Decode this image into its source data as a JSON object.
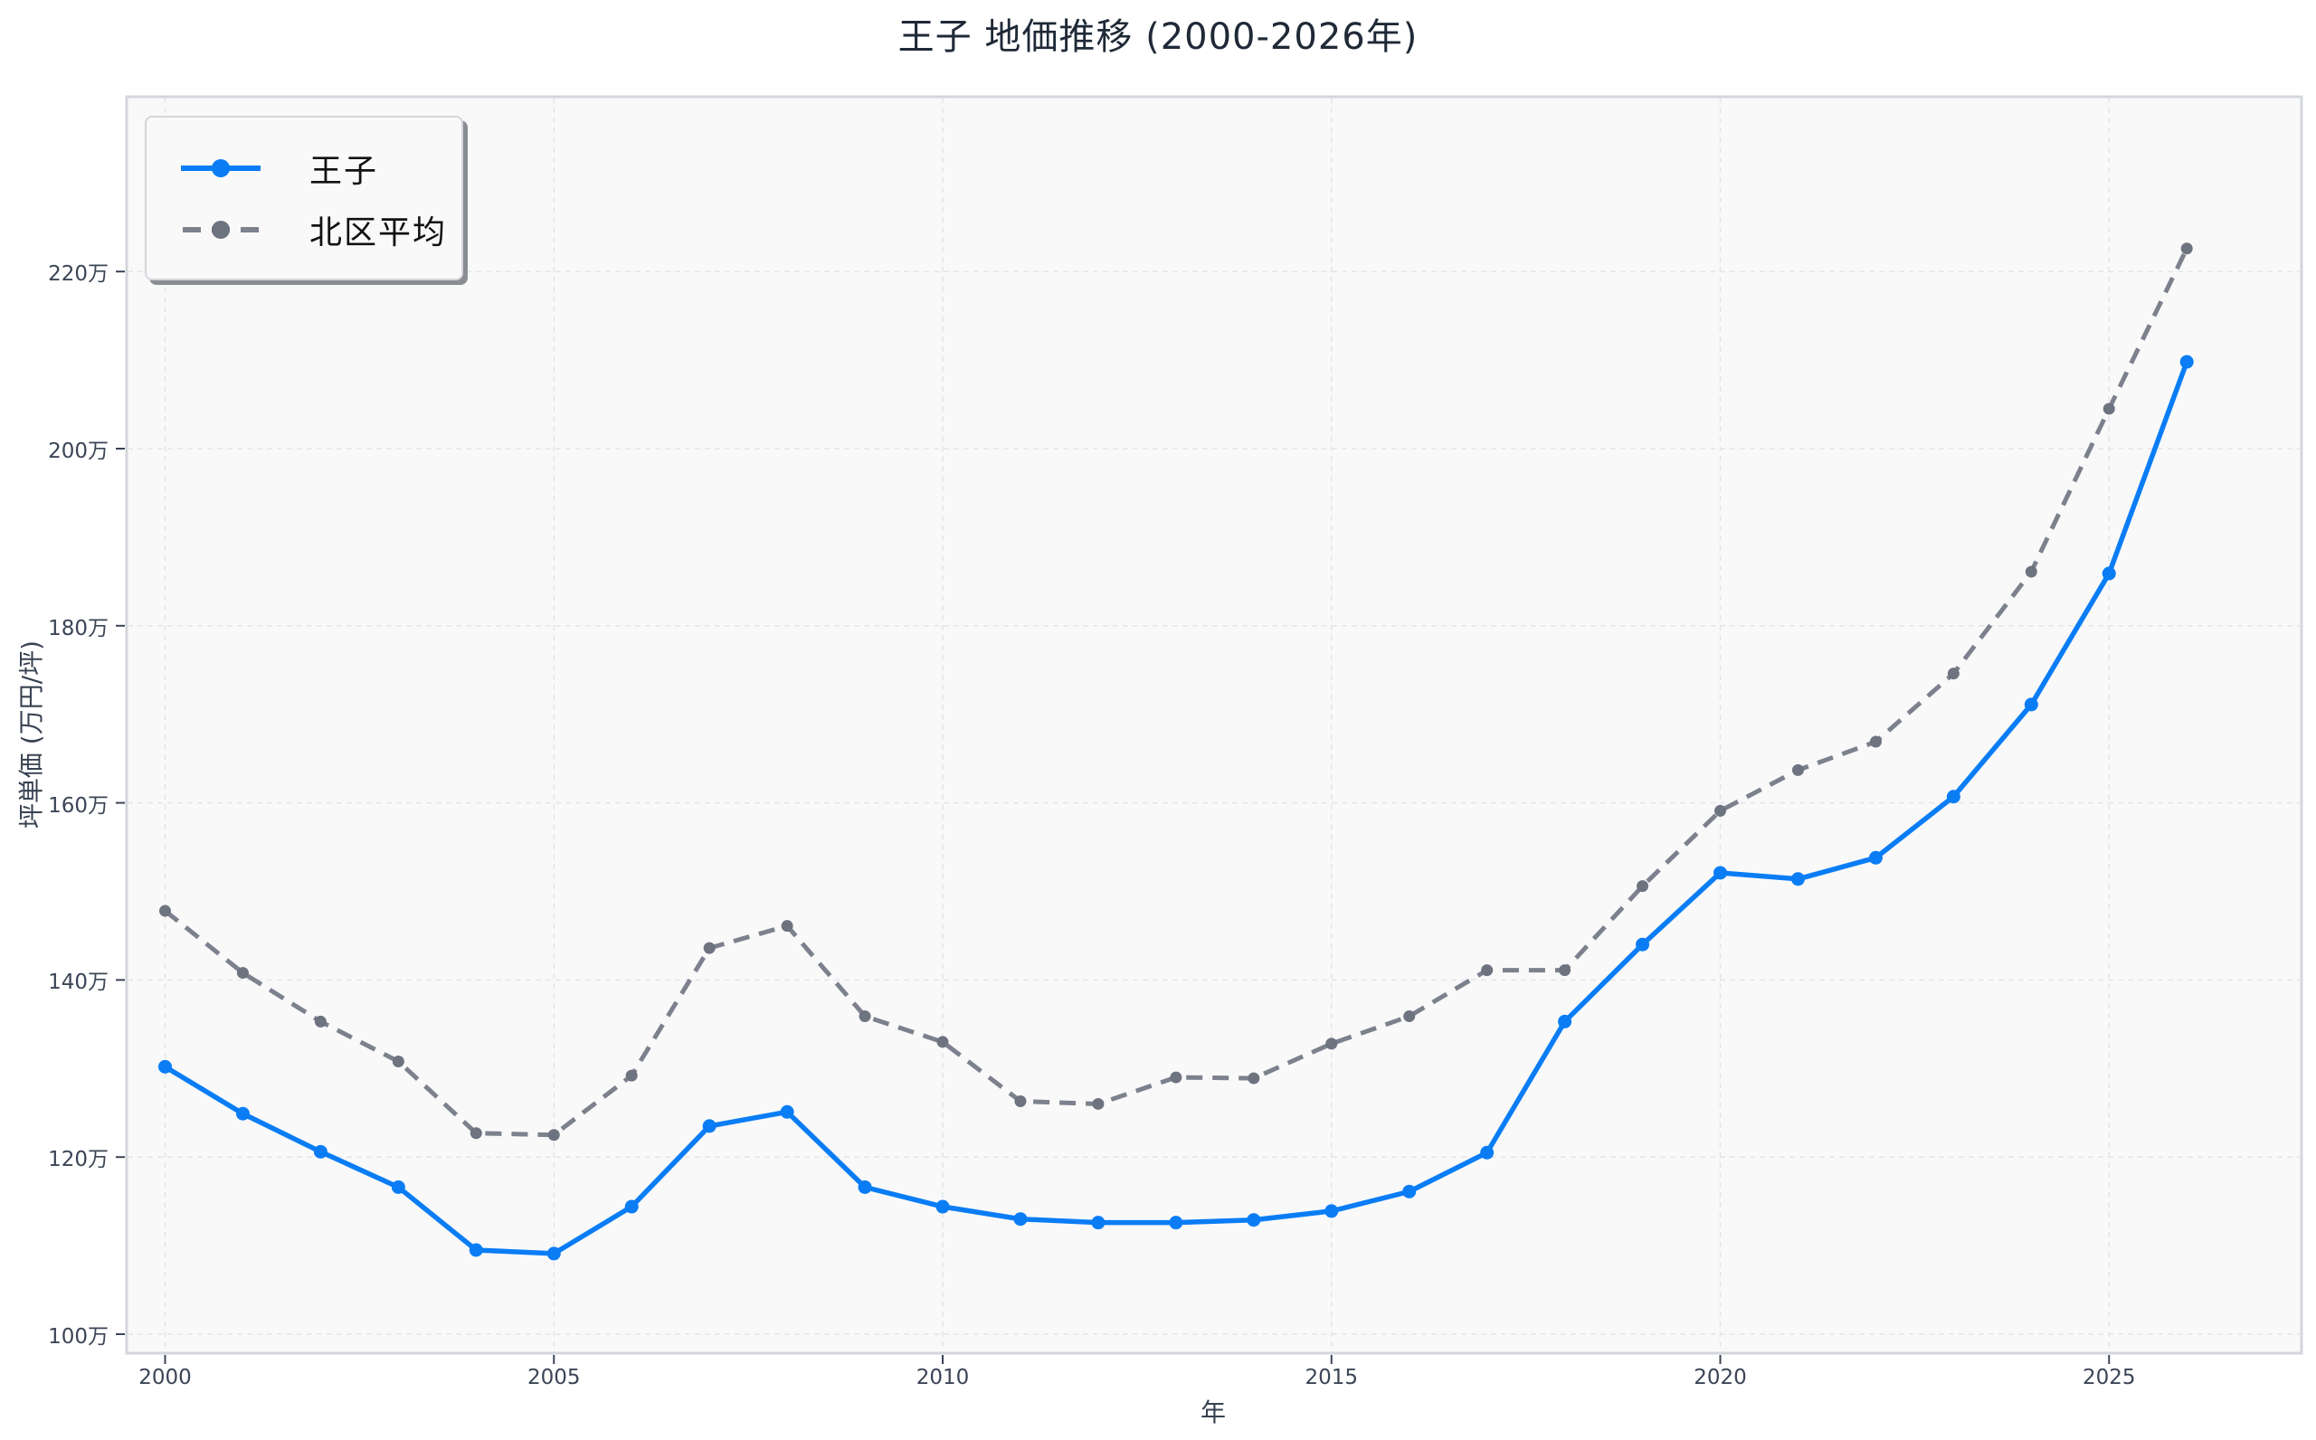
{
  "chart_data": {
    "type": "line",
    "title": "王子 地価推移 (2000-2026年)",
    "xlabel": "年",
    "ylabel": "坪単価 (万円/坪)",
    "x": [
      2000,
      2001,
      2002,
      2003,
      2004,
      2005,
      2006,
      2007,
      2008,
      2009,
      2010,
      2011,
      2012,
      2013,
      2014,
      2015,
      2016,
      2017,
      2018,
      2019,
      2020,
      2021,
      2022,
      2023,
      2024,
      2025,
      2026
    ],
    "series": [
      {
        "name": "王子",
        "color": "#0a7df5",
        "style": "solid",
        "marker": "circle",
        "values": [
          130.2,
          124.9,
          120.6,
          116.6,
          109.5,
          109.1,
          114.4,
          123.5,
          125.1,
          116.6,
          114.4,
          113.0,
          112.6,
          112.6,
          112.9,
          113.9,
          116.1,
          120.5,
          135.3,
          144.0,
          152.1,
          151.4,
          153.8,
          160.7,
          171.1,
          185.9,
          209.8
        ]
      },
      {
        "name": "北区平均",
        "color": "#7c818d",
        "style": "dashed",
        "marker": "circle",
        "values": [
          147.8,
          140.8,
          135.3,
          130.8,
          122.7,
          122.5,
          129.2,
          143.6,
          146.1,
          135.9,
          133.0,
          126.3,
          126.0,
          129.0,
          128.9,
          132.8,
          135.9,
          141.1,
          141.1,
          150.6,
          159.1,
          163.7,
          166.9,
          174.6,
          186.1,
          204.5,
          222.6
        ]
      }
    ],
    "xticks": [
      2000,
      2005,
      2010,
      2015,
      2020,
      2025
    ],
    "yticks": [
      100,
      120,
      140,
      160,
      180,
      200,
      220
    ],
    "ytick_suffix": "万",
    "xlim": [
      1999.5,
      2027.5
    ],
    "ylim": [
      97.8,
      239.8
    ],
    "grid": true,
    "legend_position": "upper left"
  },
  "legend": {
    "items": [
      {
        "label": "王子"
      },
      {
        "label": "北区平均"
      }
    ]
  }
}
